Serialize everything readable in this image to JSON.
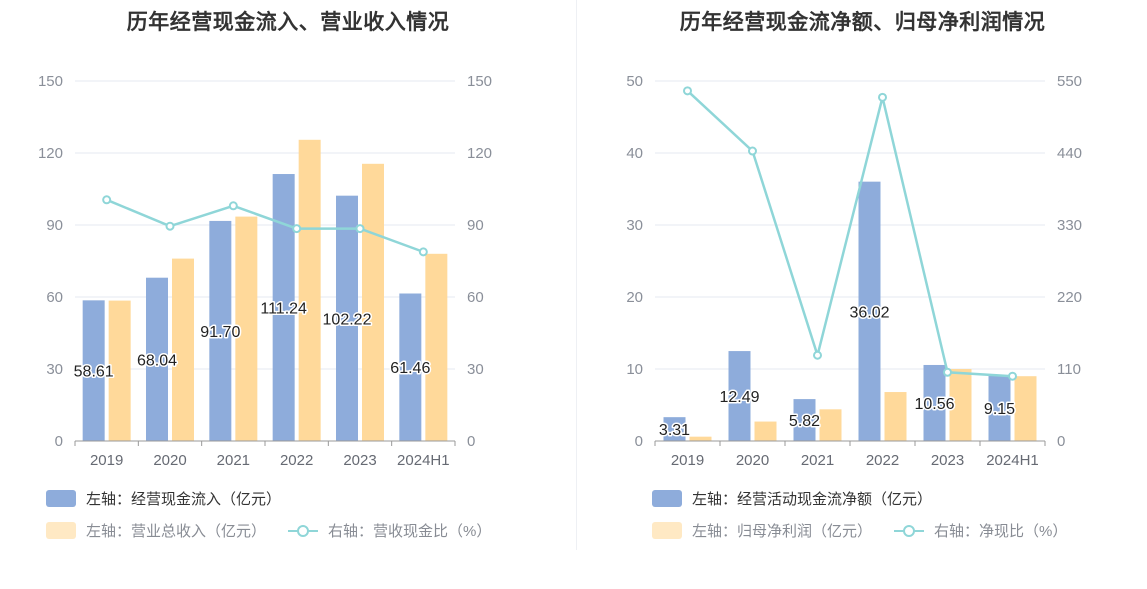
{
  "colors": {
    "bar_primary": "#8eacdb",
    "bar_secondary": "#ffd99a",
    "line": "#8fd6d8",
    "grid": "#e4e8f2",
    "axis": "#999999"
  },
  "chart_data": [
    {
      "type": "bar",
      "title": "历年经营现金流入、营业收入情况",
      "categories": [
        "2019",
        "2020",
        "2021",
        "2022",
        "2023",
        "2024H1"
      ],
      "left_axis": {
        "ylim": [
          0,
          150
        ],
        "ticks": [
          0,
          30,
          60,
          90,
          120,
          150
        ]
      },
      "right_axis": {
        "ylim": [
          0,
          150
        ],
        "ticks": [
          0,
          30,
          60,
          90,
          120,
          150
        ]
      },
      "series": [
        {
          "name": "左轴：经营现金流入（亿元）",
          "type": "bar",
          "axis": "left",
          "values": [
            58.61,
            68.04,
            91.7,
            111.24,
            102.22,
            61.46
          ],
          "labels": [
            "58.61",
            "68.04",
            "91.70",
            "111.24",
            "102.22",
            "61.46"
          ]
        },
        {
          "name": "左轴：营业总收入（亿元）",
          "type": "bar",
          "axis": "left",
          "values": [
            58.5,
            76.0,
            93.5,
            125.5,
            115.5,
            78.0
          ]
        },
        {
          "name": "右轴：营收现金比（%）",
          "type": "line",
          "axis": "right",
          "values": [
            100.5,
            89.5,
            98.0,
            88.5,
            88.5,
            78.8
          ]
        }
      ],
      "legend_placement": "bottom-left",
      "grid": true
    },
    {
      "type": "bar",
      "title": "历年经营现金流净额、归母净利润情况",
      "categories": [
        "2019",
        "2020",
        "2021",
        "2022",
        "2023",
        "2024H1"
      ],
      "left_axis": {
        "ylim": [
          0,
          50
        ],
        "ticks": [
          0,
          10,
          20,
          30,
          40,
          50
        ]
      },
      "right_axis": {
        "ylim": [
          0,
          550
        ],
        "ticks": [
          0,
          110,
          220,
          330,
          440,
          550
        ]
      },
      "series": [
        {
          "name": "左轴：经营活动现金流净额（亿元）",
          "type": "bar",
          "axis": "left",
          "values": [
            3.31,
            12.49,
            5.82,
            36.02,
            10.56,
            9.15
          ],
          "labels": [
            "3.31",
            "12.49",
            "5.82",
            "36.02",
            "10.56",
            "9.15"
          ]
        },
        {
          "name": "左轴：归母净利润（亿元）",
          "type": "bar",
          "axis": "left",
          "values": [
            0.6,
            2.7,
            4.4,
            6.8,
            10.0,
            9.0
          ]
        },
        {
          "name": "右轴：净现比（%）",
          "type": "line",
          "axis": "right",
          "values": [
            535,
            443,
            131,
            525,
            105,
            99
          ]
        }
      ],
      "legend_placement": "bottom-left",
      "grid": true
    }
  ]
}
